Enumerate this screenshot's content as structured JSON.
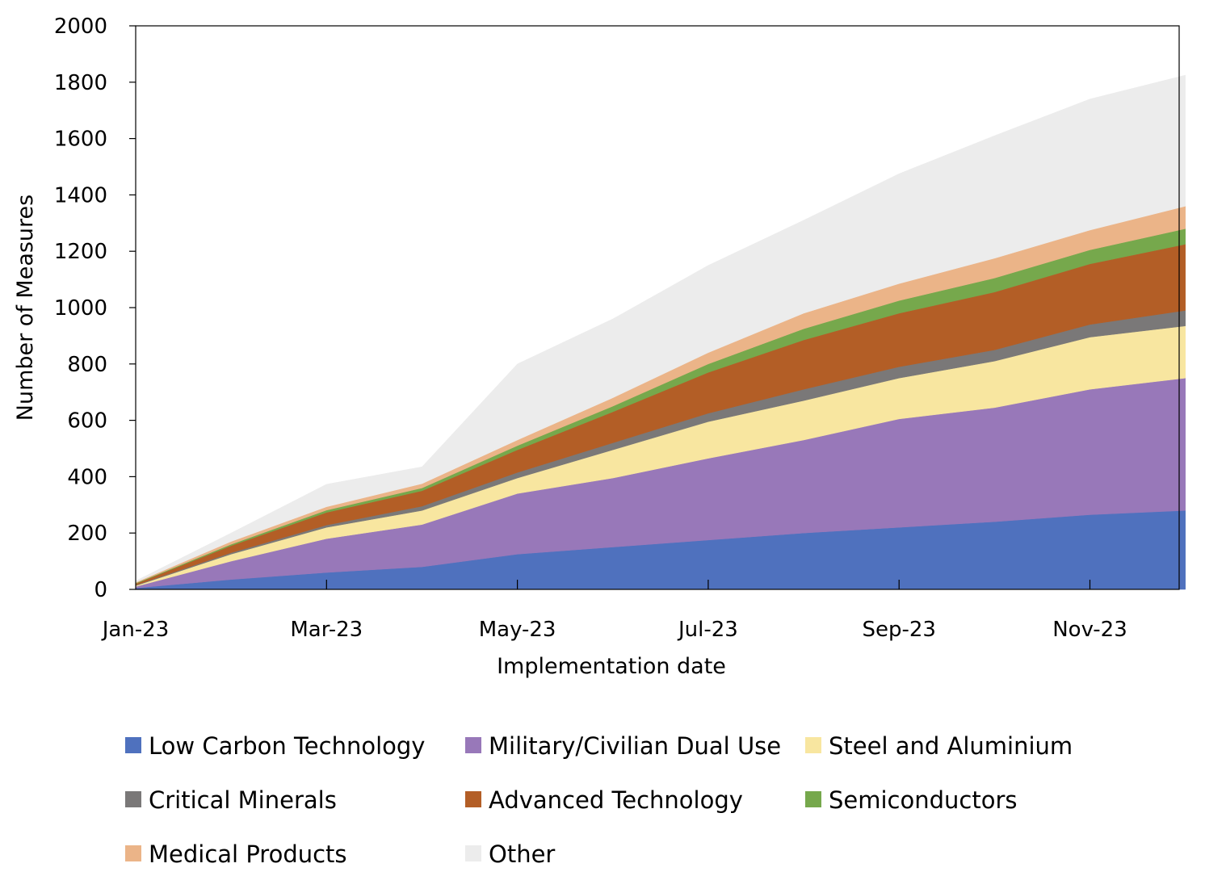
{
  "chart_data": {
    "type": "area",
    "title": "",
    "xlabel": "Implementation date",
    "ylabel": "Number of Measures",
    "ylim": [
      0,
      2000
    ],
    "yticks": [
      "0",
      "200",
      "400",
      "600",
      "800",
      "1000",
      "1200",
      "1400",
      "1600",
      "1800",
      "2000"
    ],
    "xticks": [
      "Jan-23",
      "Mar-23",
      "May-23",
      "Jul-23",
      "Sep-23",
      "Nov-23"
    ],
    "x": [
      "Jan-23",
      "Feb-23",
      "Mar-23",
      "Apr-23",
      "May-23",
      "Jun-23",
      "Jul-23",
      "Aug-23",
      "Sep-23",
      "Oct-23",
      "Nov-23",
      "Dec-23"
    ],
    "stacked": true,
    "legend_position": "bottom",
    "series": [
      {
        "name": "Low Carbon Technology",
        "color": "#4f71be",
        "values": [
          5,
          35,
          60,
          80,
          125,
          150,
          175,
          200,
          220,
          240,
          265,
          280
        ]
      },
      {
        "name": "Military/Civilian Dual Use",
        "color": "#9878b9",
        "values": [
          5,
          65,
          120,
          150,
          215,
          245,
          290,
          330,
          385,
          405,
          445,
          470
        ]
      },
      {
        "name": "Steel and Aluminium",
        "color": "#f8e6a0",
        "values": [
          3,
          25,
          40,
          50,
          55,
          100,
          130,
          140,
          145,
          165,
          185,
          185
        ]
      },
      {
        "name": "Critical Minerals",
        "color": "#7a7878",
        "values": [
          2,
          5,
          8,
          15,
          20,
          25,
          30,
          40,
          40,
          40,
          45,
          55
        ]
      },
      {
        "name": "Advanced Technology",
        "color": "#b35e26",
        "values": [
          5,
          25,
          45,
          55,
          80,
          110,
          145,
          175,
          190,
          205,
          215,
          235
        ]
      },
      {
        "name": "Semiconductors",
        "color": "#76a84c",
        "values": [
          2,
          5,
          8,
          10,
          15,
          20,
          30,
          40,
          45,
          50,
          50,
          55
        ]
      },
      {
        "name": "Medical Products",
        "color": "#ebb488",
        "values": [
          3,
          10,
          12,
          15,
          20,
          30,
          40,
          55,
          60,
          70,
          70,
          80
        ]
      },
      {
        "name": "Other",
        "color": "#ececec",
        "values": [
          5,
          30,
          80,
          60,
          270,
          280,
          310,
          330,
          390,
          435,
          465,
          465
        ]
      }
    ]
  }
}
